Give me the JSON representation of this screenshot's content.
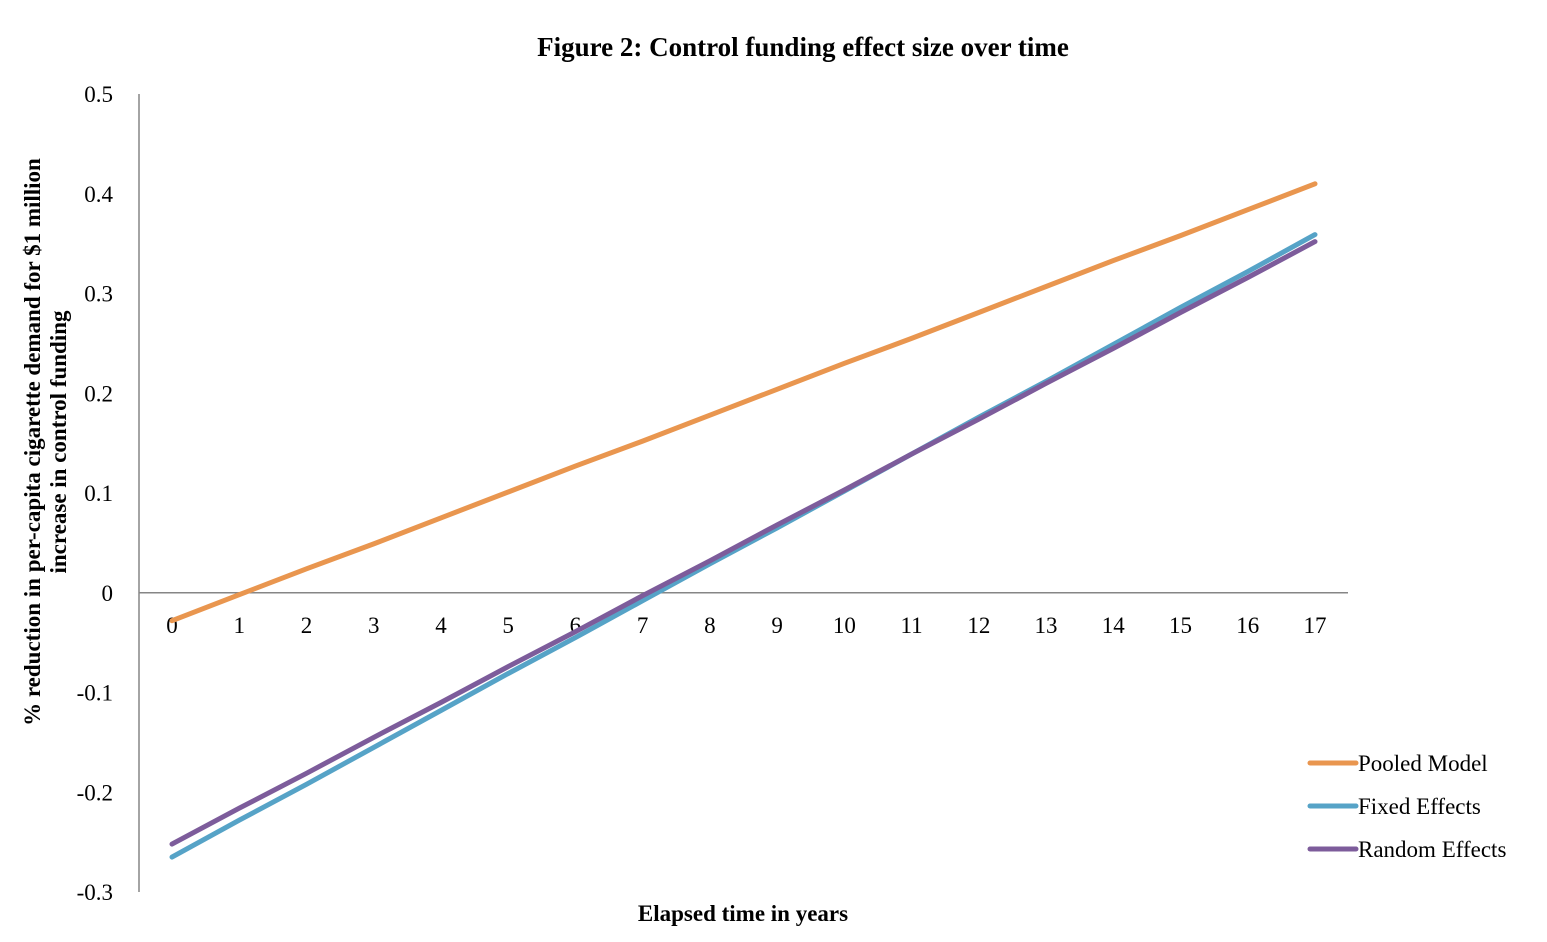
{
  "chart_data": {
    "type": "line",
    "title": "Figure 2: Control funding effect size over time",
    "xlabel": "Elapsed time in years",
    "ylabel_lines": [
      "% reduction in per-capita cigarette demand for $1 million",
      "increase in control funding"
    ],
    "x": [
      0,
      1,
      2,
      3,
      4,
      5,
      6,
      7,
      8,
      9,
      10,
      11,
      12,
      13,
      14,
      15,
      16,
      17
    ],
    "x_tick_labels": [
      "0",
      "1",
      "2",
      "3",
      "4",
      "5",
      "6",
      "7",
      "8",
      "9",
      "10",
      "11",
      "12",
      "13",
      "14",
      "15",
      "16",
      "17"
    ],
    "ylim": [
      -0.3,
      0.5
    ],
    "y_ticks": [
      -0.3,
      -0.2,
      -0.1,
      0,
      0.1,
      0.2,
      0.3,
      0.4,
      0.5
    ],
    "y_tick_labels": [
      "-0.3",
      "-0.2",
      "-0.1",
      "0",
      "0.1",
      "0.2",
      "0.3",
      "0.4",
      "0.5"
    ],
    "grid": false,
    "legend_position": "bottom-right",
    "series": [
      {
        "name": "Pooled Model",
        "color": "#E9964F",
        "values": [
          -0.028,
          -0.002,
          0.024,
          0.049,
          0.075,
          0.101,
          0.127,
          0.152,
          0.178,
          0.204,
          0.23,
          0.255,
          0.281,
          0.307,
          0.333,
          0.358,
          0.384,
          0.41
        ]
      },
      {
        "name": "Fixed Effects",
        "color": "#56A3C7",
        "values": [
          -0.265,
          -0.228,
          -0.192,
          -0.155,
          -0.118,
          -0.081,
          -0.045,
          -0.008,
          0.029,
          0.065,
          0.102,
          0.139,
          0.176,
          0.212,
          0.249,
          0.286,
          0.322,
          0.359
        ]
      },
      {
        "name": "Random Effects",
        "color": "#7D5C9B",
        "values": [
          -0.252,
          -0.216,
          -0.181,
          -0.145,
          -0.11,
          -0.074,
          -0.039,
          -0.003,
          0.032,
          0.068,
          0.103,
          0.139,
          0.174,
          0.21,
          0.245,
          0.281,
          0.316,
          0.352
        ]
      }
    ]
  }
}
